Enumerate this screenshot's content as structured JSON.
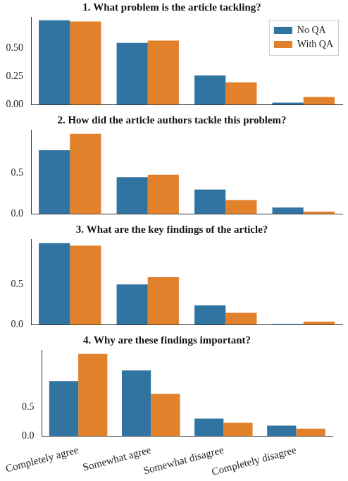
{
  "chart_data": [
    {
      "type": "bar",
      "title": "1. What problem is the article tackling?",
      "categories": [
        "Completely agree",
        "Somewhat agree",
        "Somewhat disagree",
        "Completely disagree"
      ],
      "series": [
        {
          "name": "No QA",
          "color": "#3274a1",
          "values": [
            0.75,
            0.55,
            0.26,
            0.02
          ]
        },
        {
          "name": "With QA",
          "color": "#e1812c",
          "values": [
            0.74,
            0.57,
            0.2,
            0.07
          ]
        }
      ],
      "ylim": [
        0,
        0.78
      ],
      "yticks": [
        {
          "value": 0,
          "label": "0.00"
        },
        {
          "value": 0.25,
          "label": "0.25"
        },
        {
          "value": 0.5,
          "label": "0.50"
        }
      ],
      "grid": false,
      "legend": "upper right",
      "tick_labels": "y"
    },
    {
      "type": "bar",
      "title": "2. How did the article authors tackle this problem?",
      "categories": [
        "Completely agree",
        "Somewhat agree",
        "Somewhat disagree",
        "Completely disagree"
      ],
      "series": [
        {
          "name": "No QA",
          "color": "#3274a1",
          "values": [
            0.78,
            0.45,
            0.3,
            0.08
          ]
        },
        {
          "name": "With QA",
          "color": "#e1812c",
          "values": [
            0.98,
            0.48,
            0.17,
            0.03
          ]
        }
      ],
      "ylim": [
        0,
        1.03
      ],
      "yticks": [
        {
          "value": 0,
          "label": "0.0"
        },
        {
          "value": 0.5,
          "label": "0.5"
        }
      ],
      "grid": false,
      "tick_labels": "y"
    },
    {
      "type": "bar",
      "title": "3. What are the key findings of the article?",
      "categories": [
        "Completely agree",
        "Somewhat agree",
        "Somewhat disagree",
        "Completely disagree"
      ],
      "series": [
        {
          "name": "No QA",
          "color": "#3274a1",
          "values": [
            1.01,
            0.5,
            0.24,
            0.01
          ]
        },
        {
          "name": "With QA",
          "color": "#e1812c",
          "values": [
            0.98,
            0.59,
            0.15,
            0.04
          ]
        }
      ],
      "ylim": [
        0,
        1.06
      ],
      "yticks": [
        {
          "value": 0,
          "label": "0.0"
        },
        {
          "value": 0.5,
          "label": "0.5"
        }
      ],
      "grid": false,
      "tick_labels": "y"
    },
    {
      "type": "bar",
      "title": "4. Why are these findings important?",
      "categories": [
        "Completely agree",
        "Somewhat agree",
        "Somewhat disagree",
        "Completely disagree"
      ],
      "series": [
        {
          "name": "No QA",
          "color": "#3274a1",
          "values": [
            0.94,
            1.12,
            0.3,
            0.18
          ]
        },
        {
          "name": "With QA",
          "color": "#e1812c",
          "values": [
            1.4,
            0.72,
            0.23,
            0.13
          ]
        }
      ],
      "ylim": [
        0,
        1.47
      ],
      "yticks": [
        {
          "value": 0,
          "label": "0.0"
        },
        {
          "value": 0.5,
          "label": "0.5"
        }
      ],
      "grid": false
    }
  ]
}
